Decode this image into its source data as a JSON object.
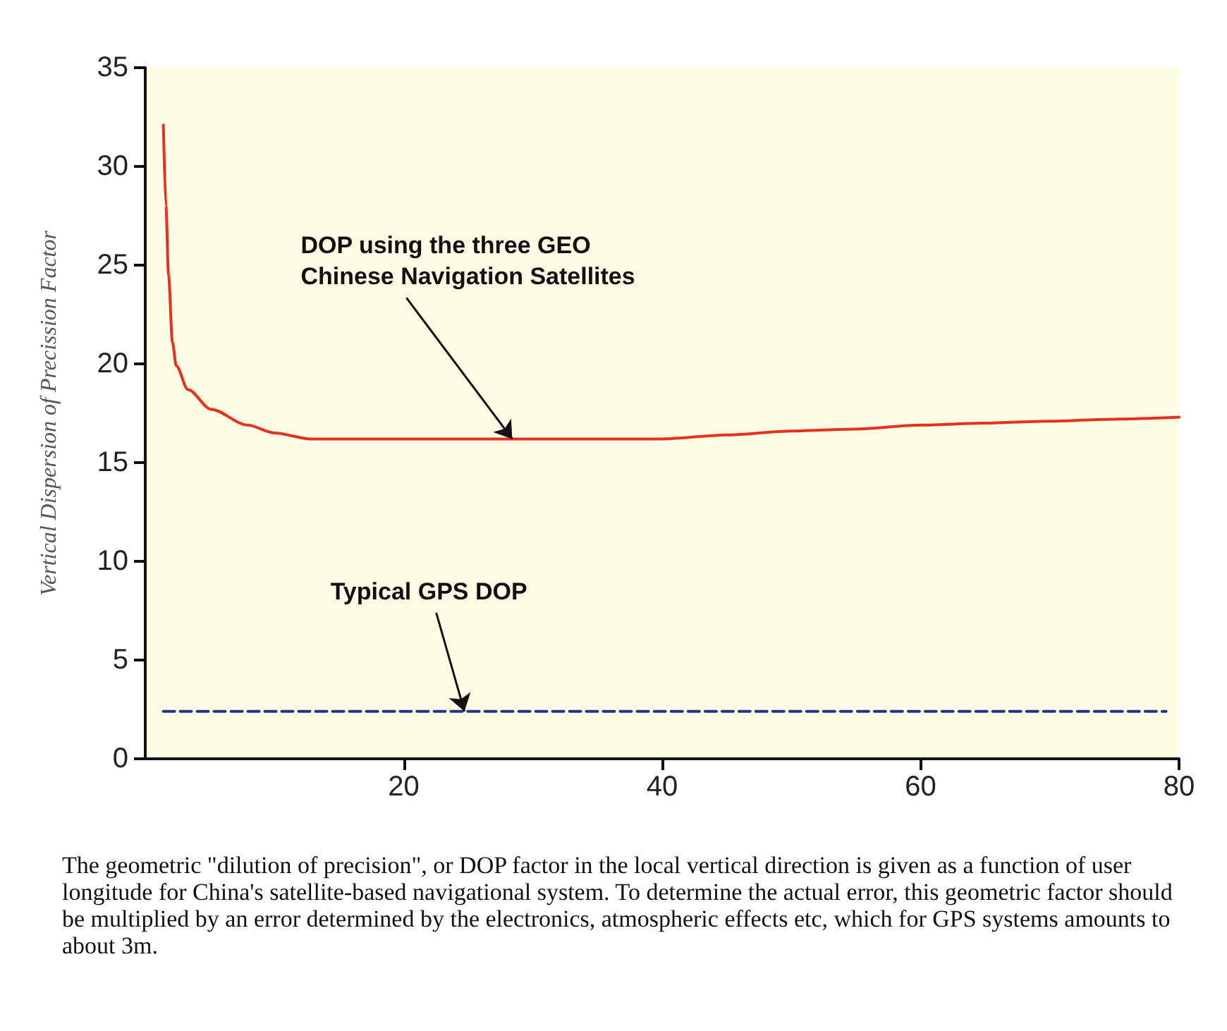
{
  "chart_data": {
    "type": "line",
    "ylabel": "Vertical Dispersion of Precission Factor",
    "xlim": [
      0,
      80
    ],
    "ylim": [
      0,
      35
    ],
    "xticks": [
      20,
      40,
      60,
      80
    ],
    "yticks": [
      0,
      5,
      10,
      15,
      20,
      25,
      30,
      35
    ],
    "grid": false,
    "marker": "none",
    "series": [
      {
        "color": "#e8301e",
        "line_style": "solid",
        "x": [
          1.4,
          1.6,
          1.8,
          2.1,
          2.4,
          3.3,
          5.1,
          7.9,
          10,
          12.8,
          16,
          20,
          25,
          30,
          35,
          40,
          45,
          50,
          55,
          60,
          65,
          70,
          75,
          80
        ],
        "values": [
          32.1,
          28,
          24.5,
          21.1,
          19.9,
          18.7,
          17.7,
          16.9,
          16.5,
          16.2,
          16.2,
          16.2,
          16.2,
          16.2,
          16.2,
          16.2,
          16.4,
          16.6,
          16.7,
          16.9,
          17,
          17.1,
          17.2,
          17.3
        ]
      },
      {
        "color": "#2b2f8a",
        "line_style": "dashed",
        "x": [
          1.4,
          79
        ],
        "values": [
          2.4,
          2.4
        ]
      }
    ],
    "annotations": [
      {
        "text": "DOP using the three GEO\nChinese Navigation Satellites",
        "x": 28.4,
        "y": 16.2
      },
      {
        "text": "Typical GPS DOP",
        "x": 24.7,
        "y": 2.4
      },
      "The geometric \"dilution of precision\", or DOP factor in the local vertical direction is given as a function of user longitude for China's satellite-based navigational system. To determine the actual error, this geometric factor should be multiplied by an error determined by the electronics, atmospheric effects etc, which for GPS systems amounts to about 3m."
    ]
  }
}
